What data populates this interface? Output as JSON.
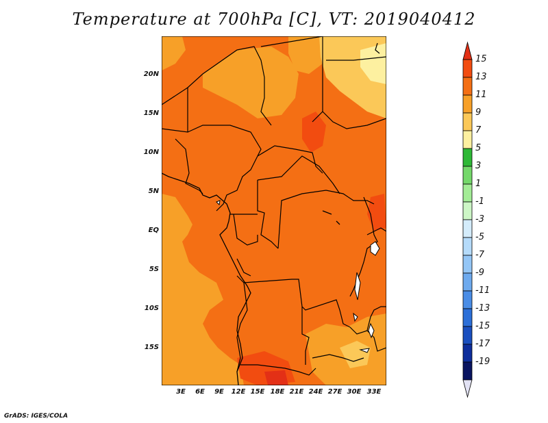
{
  "title": "Temperature at 700hPa [C], VT: 2019040412",
  "credit": "GrADS: IGES/COLA",
  "latitude_labels": [
    "20N",
    "15N",
    "10N",
    "5N",
    "EQ",
    "5S",
    "10S",
    "15S"
  ],
  "longitude_labels": [
    "3E",
    "6E",
    "9E",
    "12E",
    "15E",
    "18E",
    "21E",
    "24E",
    "27E",
    "30E",
    "33E"
  ],
  "colorbar": {
    "labels": [
      "15",
      "13",
      "11",
      "9",
      "7",
      "5",
      "3",
      "1",
      "-1",
      "-3",
      "-5",
      "-7",
      "-9",
      "-11",
      "-13",
      "-15",
      "-17",
      "-19"
    ],
    "colors": [
      "#e33016",
      "#f24c10",
      "#f46f14",
      "#f7a028",
      "#fbc858",
      "#fdf0a0",
      "#2eb836",
      "#74d86a",
      "#a3ec96",
      "#cdf6c6",
      "#d4ecfb",
      "#b5dbfa",
      "#94c6f6",
      "#6eaaee",
      "#4a8de6",
      "#2c6fd8",
      "#1a4fbf",
      "#0e2e9c",
      "#091460",
      "#e2e2f4"
    ]
  },
  "chart_data": {
    "type": "heatmap",
    "title": "Temperature at 700hPa [C], VT: 2019040412",
    "variable": "Temperature at 700hPa",
    "unit": "C",
    "valid_time": "2019040412",
    "lon_ticks": [
      "3E",
      "6E",
      "9E",
      "12E",
      "15E",
      "18E",
      "21E",
      "24E",
      "27E",
      "30E",
      "33E"
    ],
    "lat_ticks": [
      "20N",
      "15N",
      "10N",
      "5N",
      "EQ",
      "5S",
      "10S",
      "15S"
    ],
    "color_levels": [
      15,
      13,
      11,
      9,
      7,
      5,
      3,
      1,
      -1,
      -3,
      -5,
      -7,
      -9,
      -11,
      -13,
      -15,
      -17,
      -19
    ],
    "dominant_ranges": [
      {
        "region": "most of domain",
        "range_c": [
          11,
          13
        ]
      },
      {
        "region": "Atlantic west and south-west",
        "range_c": [
          9,
          11
        ]
      },
      {
        "region": "north-east corner",
        "range_c": [
          5,
          9
        ]
      },
      {
        "region": "south-central Angola",
        "range_c": [
          13,
          15
        ]
      }
    ]
  }
}
